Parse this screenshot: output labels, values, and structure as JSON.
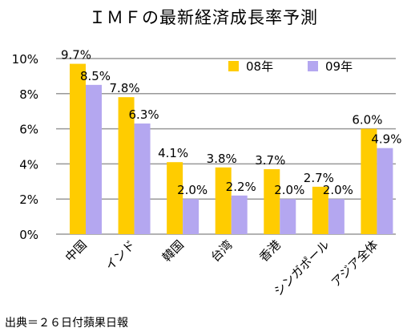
{
  "chart_data": {
    "type": "bar",
    "title": "ＩＭＦの最新経済成長率予測",
    "categories": [
      "中国",
      "インド",
      "韓国",
      "台湾",
      "香港",
      "シンガポール",
      "アジア全体"
    ],
    "series": [
      {
        "name": "08年",
        "color": "#FFCC00",
        "values": [
          9.7,
          7.8,
          4.1,
          3.8,
          3.7,
          2.7,
          6.0
        ],
        "labels": [
          "9.7%",
          "7.8%",
          "4.1%",
          "3.8%",
          "3.7%",
          "2.7%",
          "6.0%"
        ]
      },
      {
        "name": "09年",
        "color": "#B4A7F0",
        "values": [
          8.5,
          6.3,
          2.0,
          2.2,
          2.0,
          2.0,
          4.9
        ],
        "labels": [
          "8.5%",
          "6.3%",
          "2.0%",
          "2.2%",
          "2.0%",
          "2.0%",
          "4.9%"
        ]
      }
    ],
    "ylim": [
      0,
      10
    ],
    "yticks": [
      0,
      2,
      4,
      6,
      8,
      10
    ],
    "ytick_labels": [
      "0%",
      "2%",
      "4%",
      "6%",
      "8%",
      "10%"
    ],
    "grid": true,
    "legend": "top-right",
    "source": "出典＝２６日付蘋果日報"
  }
}
